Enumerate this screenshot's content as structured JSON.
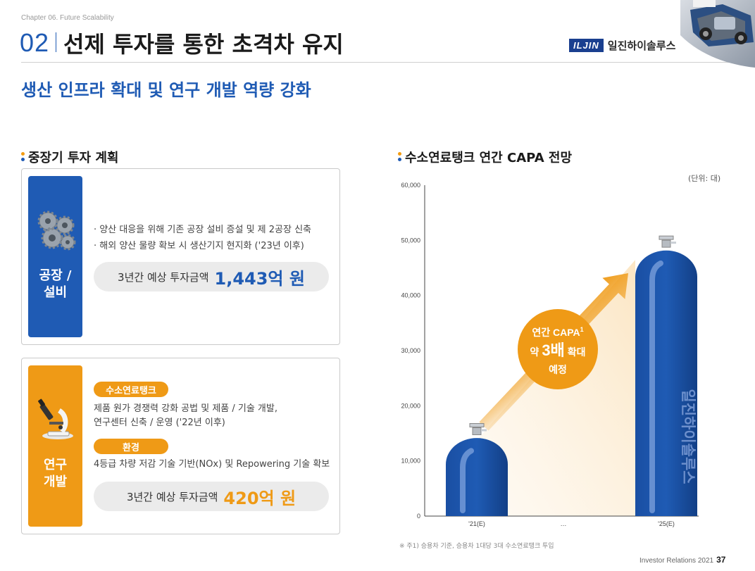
{
  "header": {
    "chapter": "Chapter 06. Future Scalability",
    "number": "02",
    "title": "선제 투자를 통한 초격차 유지",
    "logo_mark": "ILJIN",
    "logo_name": "일진하이솔루스"
  },
  "subtitle": "생산 인프라 확대 및 연구 개발 역량 강화",
  "left_section": {
    "title": "중장기 투자 계획",
    "card1": {
      "side_label": "공장 /\n설비",
      "icon": "gears-icon",
      "bullet1": "· 양산 대응을 위해 기존 공장 설비 증설 및 제 2공장 신축",
      "bullet2": "· 해외 양산 물량 확보 시 생산기지 현지화 ('23년 이후)",
      "amount_label": "3년간 예상 투자금액",
      "amount_value": "1,443억 원"
    },
    "card2": {
      "side_label": "연구\n개발",
      "icon": "microscope-icon",
      "pill1": "수소연료탱크",
      "text1_line1": "제품 원가 경쟁력 강화 공법 및 제품 / 기술 개발,",
      "text1_line2": "연구센터 신축 / 운영 ('22년 이후)",
      "pill2": "환경",
      "text2": "4등급 차량 저감 기술 기반(NOx) 및 Repowering 기술 확보",
      "amount_label": "3년간 예상 투자금액",
      "amount_value": "420억 원"
    }
  },
  "right_section": {
    "title": "수소연료탱크 연간 CAPA 전망",
    "unit": "(단위: 대)",
    "callout_line1": "연간 CAPA",
    "callout_sup": "1",
    "callout_pre": "약",
    "callout_big": "3배",
    "callout_post": "확대",
    "callout_line3": "예정",
    "tank_watermark": "일진하이솔루스",
    "footnote": "※ 주1) 승용차 기준, 승용차 1대당 3대 수소연료탱크 투입"
  },
  "chart_data": {
    "type": "bar",
    "categories": [
      "'21(E)",
      "…",
      "'25(E)"
    ],
    "values": [
      15000,
      null,
      49000
    ],
    "title": "수소연료탱크 연간 CAPA 전망",
    "ylabel": "",
    "xlabel": "",
    "ylim": [
      0,
      60000
    ],
    "yticks": [
      0,
      10000,
      20000,
      30000,
      40000,
      50000,
      60000
    ],
    "ytick_labels": [
      "0",
      "10,000",
      "20,000",
      "30,000",
      "40,000",
      "50,000",
      "60,000"
    ],
    "bar_color": "#1f5bb4",
    "arrow_color": "#ef9a16"
  },
  "footer": {
    "text": "Investor Relations 2021",
    "page": "37"
  }
}
